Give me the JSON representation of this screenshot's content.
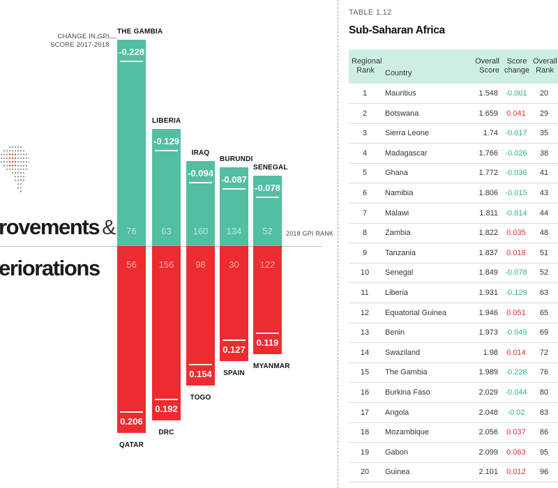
{
  "infographic": {
    "heading_improvements": "rovements",
    "heading_amp": "&",
    "heading_deteriorations": "eriorations",
    "callout_line1": "CHANGE IN GPI",
    "callout_line2": "SCORE 2017-2018",
    "rank_caption": "2018 GPI RANK",
    "colors": {
      "improvement": "#53bfa2",
      "deterioration": "#ee2b30"
    },
    "improvements": [
      {
        "country": "THE GAMBIA",
        "change": "-0.228",
        "rank": "76"
      },
      {
        "country": "LIBERIA",
        "change": "-0.129",
        "rank": "63"
      },
      {
        "country": "IRAQ",
        "change": "-0.094",
        "rank": "160"
      },
      {
        "country": "BURUNDI",
        "change": "-0.087",
        "rank": "134"
      },
      {
        "country": "SENEGAL",
        "change": "-0.078",
        "rank": "52"
      }
    ],
    "deteriorations": [
      {
        "country": "QATAR",
        "change": "0.206",
        "rank": "56"
      },
      {
        "country": "DRC",
        "change": "0.192",
        "rank": "156"
      },
      {
        "country": "TOGO",
        "change": "0.154",
        "rank": "98"
      },
      {
        "country": "SPAIN",
        "change": "0.127",
        "rank": "30"
      },
      {
        "country": "MYANMAR",
        "change": "0.119",
        "rank": "122"
      }
    ]
  },
  "table": {
    "label": "TABLE 1.12",
    "title": "Sub-Saharan Africa",
    "headers": {
      "regional_rank": [
        "Regional",
        "Rank"
      ],
      "country": "Country",
      "overall_score": [
        "Overall",
        "Score"
      ],
      "score_change": [
        "Score",
        "change"
      ],
      "overall_rank": [
        "Overall",
        "Rank"
      ]
    },
    "rows": [
      {
        "rank": "1",
        "country": "Mauritius",
        "score": "1.548",
        "change": "-0.001",
        "orank": "20"
      },
      {
        "rank": "2",
        "country": "Botswana",
        "score": "1.659",
        "change": "0.041",
        "orank": "29"
      },
      {
        "rank": "3",
        "country": "Sierra Leone",
        "score": "1.74",
        "change": "-0.017",
        "orank": "35"
      },
      {
        "rank": "4",
        "country": "Madagascar",
        "score": "1.766",
        "change": "-0.026",
        "orank": "38"
      },
      {
        "rank": "5",
        "country": "Ghana",
        "score": "1.772",
        "change": "-0.036",
        "orank": "41"
      },
      {
        "rank": "6",
        "country": "Namibia",
        "score": "1.806",
        "change": "-0.015",
        "orank": "43"
      },
      {
        "rank": "7",
        "country": "Malawi",
        "score": "1.811",
        "change": "-0.014",
        "orank": "44"
      },
      {
        "rank": "8",
        "country": "Zambia",
        "score": "1.822",
        "change": "0.035",
        "orank": "48"
      },
      {
        "rank": "9",
        "country": "Tanzania",
        "score": "1.837",
        "change": "0.018",
        "orank": "51"
      },
      {
        "rank": "10",
        "country": "Senegal",
        "score": "1.849",
        "change": "-0.078",
        "orank": "52"
      },
      {
        "rank": "11",
        "country": "Liberia",
        "score": "1.931",
        "change": "-0.129",
        "orank": "63"
      },
      {
        "rank": "12",
        "country": "Equatorial Guinea",
        "score": "1.946",
        "change": "0.051",
        "orank": "65"
      },
      {
        "rank": "13",
        "country": "Benin",
        "score": "1.973",
        "change": "-0.049",
        "orank": "69"
      },
      {
        "rank": "14",
        "country": "Swaziland",
        "score": "1.98",
        "change": "0.014",
        "orank": "72"
      },
      {
        "rank": "15",
        "country": "The Gambia",
        "score": "1.989",
        "change": "-0.228",
        "orank": "76"
      },
      {
        "rank": "16",
        "country": "Burkina Faso",
        "score": "2.029",
        "change": "-0.044",
        "orank": "80"
      },
      {
        "rank": "17",
        "country": "Angola",
        "score": "2.048",
        "change": "-0.02",
        "orank": "83"
      },
      {
        "rank": "18",
        "country": "Mozambique",
        "score": "2.056",
        "change": "0.037",
        "orank": "86"
      },
      {
        "rank": "19",
        "country": "Gabon",
        "score": "2.099",
        "change": "0.063",
        "orank": "95"
      },
      {
        "rank": "20",
        "country": "Guinea",
        "score": "2.101",
        "change": "0.012",
        "orank": "96"
      }
    ]
  }
}
